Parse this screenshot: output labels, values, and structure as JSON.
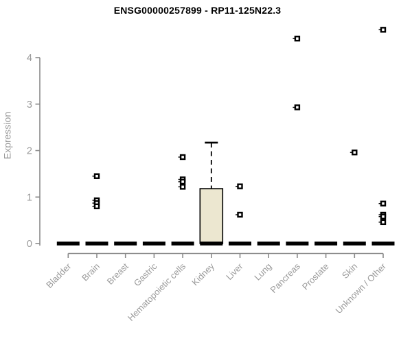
{
  "window": {
    "background": "#ffffff"
  },
  "chart_data": {
    "type": "box",
    "title": "ENSG00000257899 - RP11-125N22.3",
    "ylabel": "Expression",
    "xlabel": "",
    "ylim": [
      0,
      4
    ],
    "yticks": [
      0,
      1,
      2,
      3,
      4
    ],
    "grid": false,
    "legend": false,
    "categories": [
      "Bladder",
      "Brain",
      "Breast",
      "Gastric",
      "Hematopoietic cells",
      "Kidney",
      "Liver",
      "Lung",
      "Pancreas",
      "Prostate",
      "Skin",
      "Unknown / Other"
    ],
    "boxes": [
      {
        "category": "Bladder",
        "whisker_low": 0,
        "q1": 0,
        "median": 0,
        "q3": 0,
        "whisker_high": 0,
        "outliers": []
      },
      {
        "category": "Brain",
        "whisker_low": 0,
        "q1": 0,
        "median": 0,
        "q3": 0,
        "whisker_high": 0,
        "outliers": [
          1.45,
          0.93,
          0.87,
          0.8
        ]
      },
      {
        "category": "Breast",
        "whisker_low": 0,
        "q1": 0,
        "median": 0,
        "q3": 0,
        "whisker_high": 0,
        "outliers": []
      },
      {
        "category": "Gastric",
        "whisker_low": 0,
        "q1": 0,
        "median": 0,
        "q3": 0,
        "whisker_high": 0,
        "outliers": []
      },
      {
        "category": "Hematopoietic cells",
        "whisker_low": 0,
        "q1": 0,
        "median": 0,
        "q3": 0,
        "whisker_high": 0,
        "outliers": [
          1.86,
          1.38,
          1.33,
          1.22
        ]
      },
      {
        "category": "Kidney",
        "whisker_low": 0,
        "q1": 0,
        "median": 0,
        "q3": 1.18,
        "whisker_high": 2.17,
        "outliers": []
      },
      {
        "category": "Liver",
        "whisker_low": 0,
        "q1": 0,
        "median": 0,
        "q3": 0,
        "whisker_high": 0,
        "outliers": [
          1.23,
          0.62
        ]
      },
      {
        "category": "Lung",
        "whisker_low": 0,
        "q1": 0,
        "median": 0,
        "q3": 0,
        "whisker_high": 0,
        "outliers": []
      },
      {
        "category": "Pancreas",
        "whisker_low": 0,
        "q1": 0,
        "median": 0,
        "q3": 0,
        "whisker_high": 0,
        "outliers": [
          4.41,
          2.93
        ]
      },
      {
        "category": "Prostate",
        "whisker_low": 0,
        "q1": 0,
        "median": 0,
        "q3": 0,
        "whisker_high": 0,
        "outliers": []
      },
      {
        "category": "Skin",
        "whisker_low": 0,
        "q1": 0,
        "median": 0,
        "q3": 0,
        "whisker_high": 0,
        "outliers": [
          1.96
        ]
      },
      {
        "category": "Unknown / Other",
        "whisker_low": 0,
        "q1": 0,
        "median": 0,
        "q3": 0,
        "whisker_high": 0,
        "outliers": [
          4.6,
          0.86,
          0.62,
          0.58,
          0.46
        ]
      }
    ],
    "colors": {
      "title": "#000000",
      "axis_line": "#8a8a8a",
      "tick_label": "#9a9a9a",
      "box_fill": "#ece7d0",
      "box_stroke": "#000000",
      "median": "#000000",
      "whisker": "#000000",
      "outlier": "#000000"
    }
  }
}
